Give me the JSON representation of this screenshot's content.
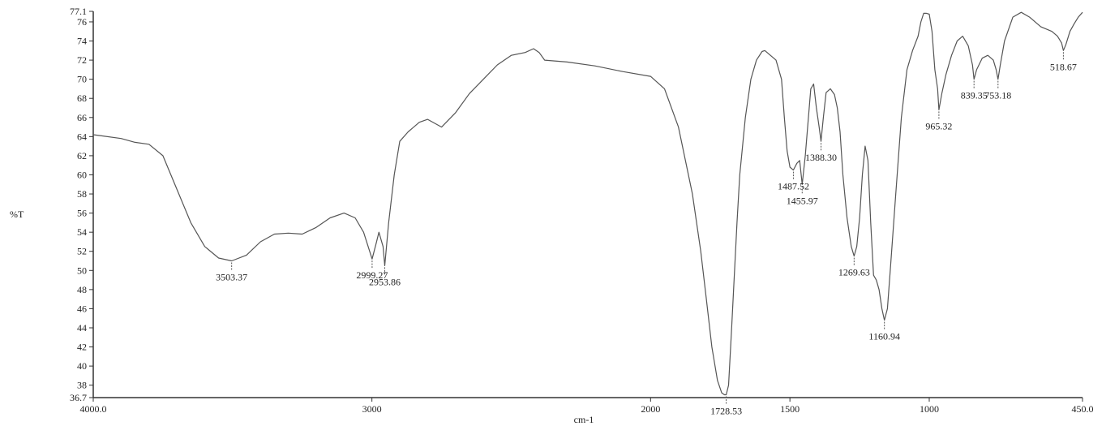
{
  "chart_data": {
    "type": "line",
    "xlabel": "cm-1",
    "ylabel": "%T",
    "xlim": [
      4000.0,
      450.0
    ],
    "ylim": [
      36.7,
      77.1
    ],
    "x_reversed": true,
    "grid": false,
    "line_color": "#555555",
    "x_tick_labels": [
      {
        "value": 4000,
        "text": "4000.0"
      },
      {
        "value": 3000,
        "text": "3000"
      },
      {
        "value": 2000,
        "text": "2000"
      },
      {
        "value": 1500,
        "text": "1500"
      },
      {
        "value": 1000,
        "text": "1000"
      },
      {
        "value": 450,
        "text": "450.0"
      }
    ],
    "y_tick_labels": [
      {
        "value": 77.1,
        "text": "77.1"
      },
      {
        "value": 76,
        "text": "76"
      },
      {
        "value": 74,
        "text": "74"
      },
      {
        "value": 72,
        "text": "72"
      },
      {
        "value": 70,
        "text": "70"
      },
      {
        "value": 68,
        "text": "68"
      },
      {
        "value": 66,
        "text": "66"
      },
      {
        "value": 64,
        "text": "64"
      },
      {
        "value": 62,
        "text": "62"
      },
      {
        "value": 60,
        "text": "60"
      },
      {
        "value": 58,
        "text": "58"
      },
      {
        "value": 56,
        "text": "56"
      },
      {
        "value": 54,
        "text": "54"
      },
      {
        "value": 52,
        "text": "52"
      },
      {
        "value": 50,
        "text": "50"
      },
      {
        "value": 48,
        "text": "48"
      },
      {
        "value": 46,
        "text": "46"
      },
      {
        "value": 44,
        "text": "44"
      },
      {
        "value": 42,
        "text": "42"
      },
      {
        "value": 40,
        "text": "40"
      },
      {
        "value": 38,
        "text": "38"
      },
      {
        "value": 36.7,
        "text": "36.7"
      }
    ],
    "peak_labels": [
      {
        "x": 3503.37,
        "y": 51.0,
        "text": "3503.37"
      },
      {
        "x": 2999.27,
        "y": 51.2,
        "text": "2999.27"
      },
      {
        "x": 2953.86,
        "y": 50.5,
        "text": "2953.86"
      },
      {
        "x": 1728.53,
        "y": 37.0,
        "text": "1728.53"
      },
      {
        "x": 1487.52,
        "y": 60.5,
        "text": "1487.52"
      },
      {
        "x": 1455.97,
        "y": 59.0,
        "text": "1455.97"
      },
      {
        "x": 1388.3,
        "y": 63.5,
        "text": "1388.30"
      },
      {
        "x": 1269.63,
        "y": 51.5,
        "text": "1269.63"
      },
      {
        "x": 1160.94,
        "y": 44.8,
        "text": "1160.94"
      },
      {
        "x": 965.32,
        "y": 66.8,
        "text": "965.32"
      },
      {
        "x": 839.35,
        "y": 70.0,
        "text": "839.35"
      },
      {
        "x": 753.18,
        "y": 70.0,
        "text": "753.18"
      },
      {
        "x": 518.67,
        "y": 73.0,
        "text": "518.67"
      }
    ],
    "series": [
      {
        "x": [
          4000,
          3900,
          3850,
          3800,
          3750,
          3700,
          3650,
          3600,
          3550,
          3503.37,
          3450,
          3400,
          3350,
          3300,
          3250,
          3200,
          3150,
          3100,
          3060,
          3030,
          2999.27,
          2985,
          2975,
          2960,
          2953.86,
          2940,
          2920,
          2900,
          2870,
          2830,
          2800,
          2750,
          2700,
          2650,
          2600,
          2550,
          2500,
          2450,
          2420,
          2400,
          2380,
          2300,
          2200,
          2100,
          2000,
          1950,
          1900,
          1850,
          1820,
          1800,
          1780,
          1760,
          1745,
          1735,
          1728.53,
          1720,
          1710,
          1690,
          1680,
          1660,
          1640,
          1620,
          1600,
          1590,
          1570,
          1550,
          1530,
          1520,
          1510,
          1500,
          1487.52,
          1475,
          1465,
          1455.97,
          1445,
          1435,
          1425,
          1415,
          1405,
          1395,
          1388.3,
          1380,
          1370,
          1355,
          1340,
          1330,
          1320,
          1310,
          1295,
          1280,
          1269.63,
          1260,
          1250,
          1240,
          1230,
          1220,
          1210,
          1200,
          1190,
          1180,
          1170,
          1160.94,
          1150,
          1140,
          1120,
          1100,
          1080,
          1060,
          1040,
          1030,
          1020,
          1010,
          1000,
          990,
          980,
          970,
          965.32,
          955,
          940,
          920,
          900,
          880,
          860,
          845,
          839.35,
          830,
          810,
          790,
          770,
          760,
          753.18,
          745,
          730,
          700,
          670,
          640,
          600,
          560,
          540,
          525,
          518.67,
          510,
          495,
          480,
          465,
          450
        ],
        "y": [
          64.2,
          63.8,
          63.4,
          63.2,
          62.0,
          58.5,
          55.0,
          52.5,
          51.3,
          51.0,
          51.6,
          53.0,
          53.8,
          53.9,
          53.8,
          54.5,
          55.5,
          56.0,
          55.5,
          54.0,
          51.2,
          52.8,
          54.0,
          52.5,
          50.5,
          55.0,
          60.0,
          63.5,
          64.5,
          65.5,
          65.8,
          65.0,
          66.5,
          68.5,
          70.0,
          71.5,
          72.5,
          72.8,
          73.2,
          72.8,
          72.0,
          71.8,
          71.4,
          70.8,
          70.3,
          69.0,
          65.0,
          58.0,
          52.0,
          47.0,
          42.0,
          38.5,
          37.2,
          37.0,
          37.0,
          38.0,
          43.5,
          55.0,
          60.0,
          66.0,
          70.0,
          72.0,
          72.9,
          73.0,
          72.5,
          72.0,
          70.0,
          66.0,
          62.5,
          60.8,
          60.5,
          61.2,
          61.5,
          59.0,
          62.0,
          65.5,
          69.0,
          69.5,
          67.0,
          65.0,
          63.5,
          66.0,
          68.6,
          69.0,
          68.4,
          67.0,
          64.5,
          60.0,
          55.5,
          52.5,
          51.5,
          52.5,
          55.5,
          60.0,
          63.0,
          61.5,
          55.0,
          49.5,
          49.0,
          48.0,
          46.0,
          44.8,
          46.0,
          50.0,
          58.0,
          66.0,
          71.0,
          73.0,
          74.5,
          76.0,
          76.9,
          76.9,
          76.8,
          75.0,
          71.0,
          69.0,
          66.8,
          68.5,
          70.5,
          72.5,
          74.0,
          74.5,
          73.5,
          71.5,
          70.0,
          71.0,
          72.2,
          72.5,
          72.0,
          71.0,
          70.0,
          71.5,
          74.0,
          76.5,
          77.0,
          76.5,
          75.5,
          75.0,
          74.5,
          73.8,
          73.0,
          73.6,
          75.0,
          75.8,
          76.5,
          77.0
        ]
      }
    ]
  }
}
